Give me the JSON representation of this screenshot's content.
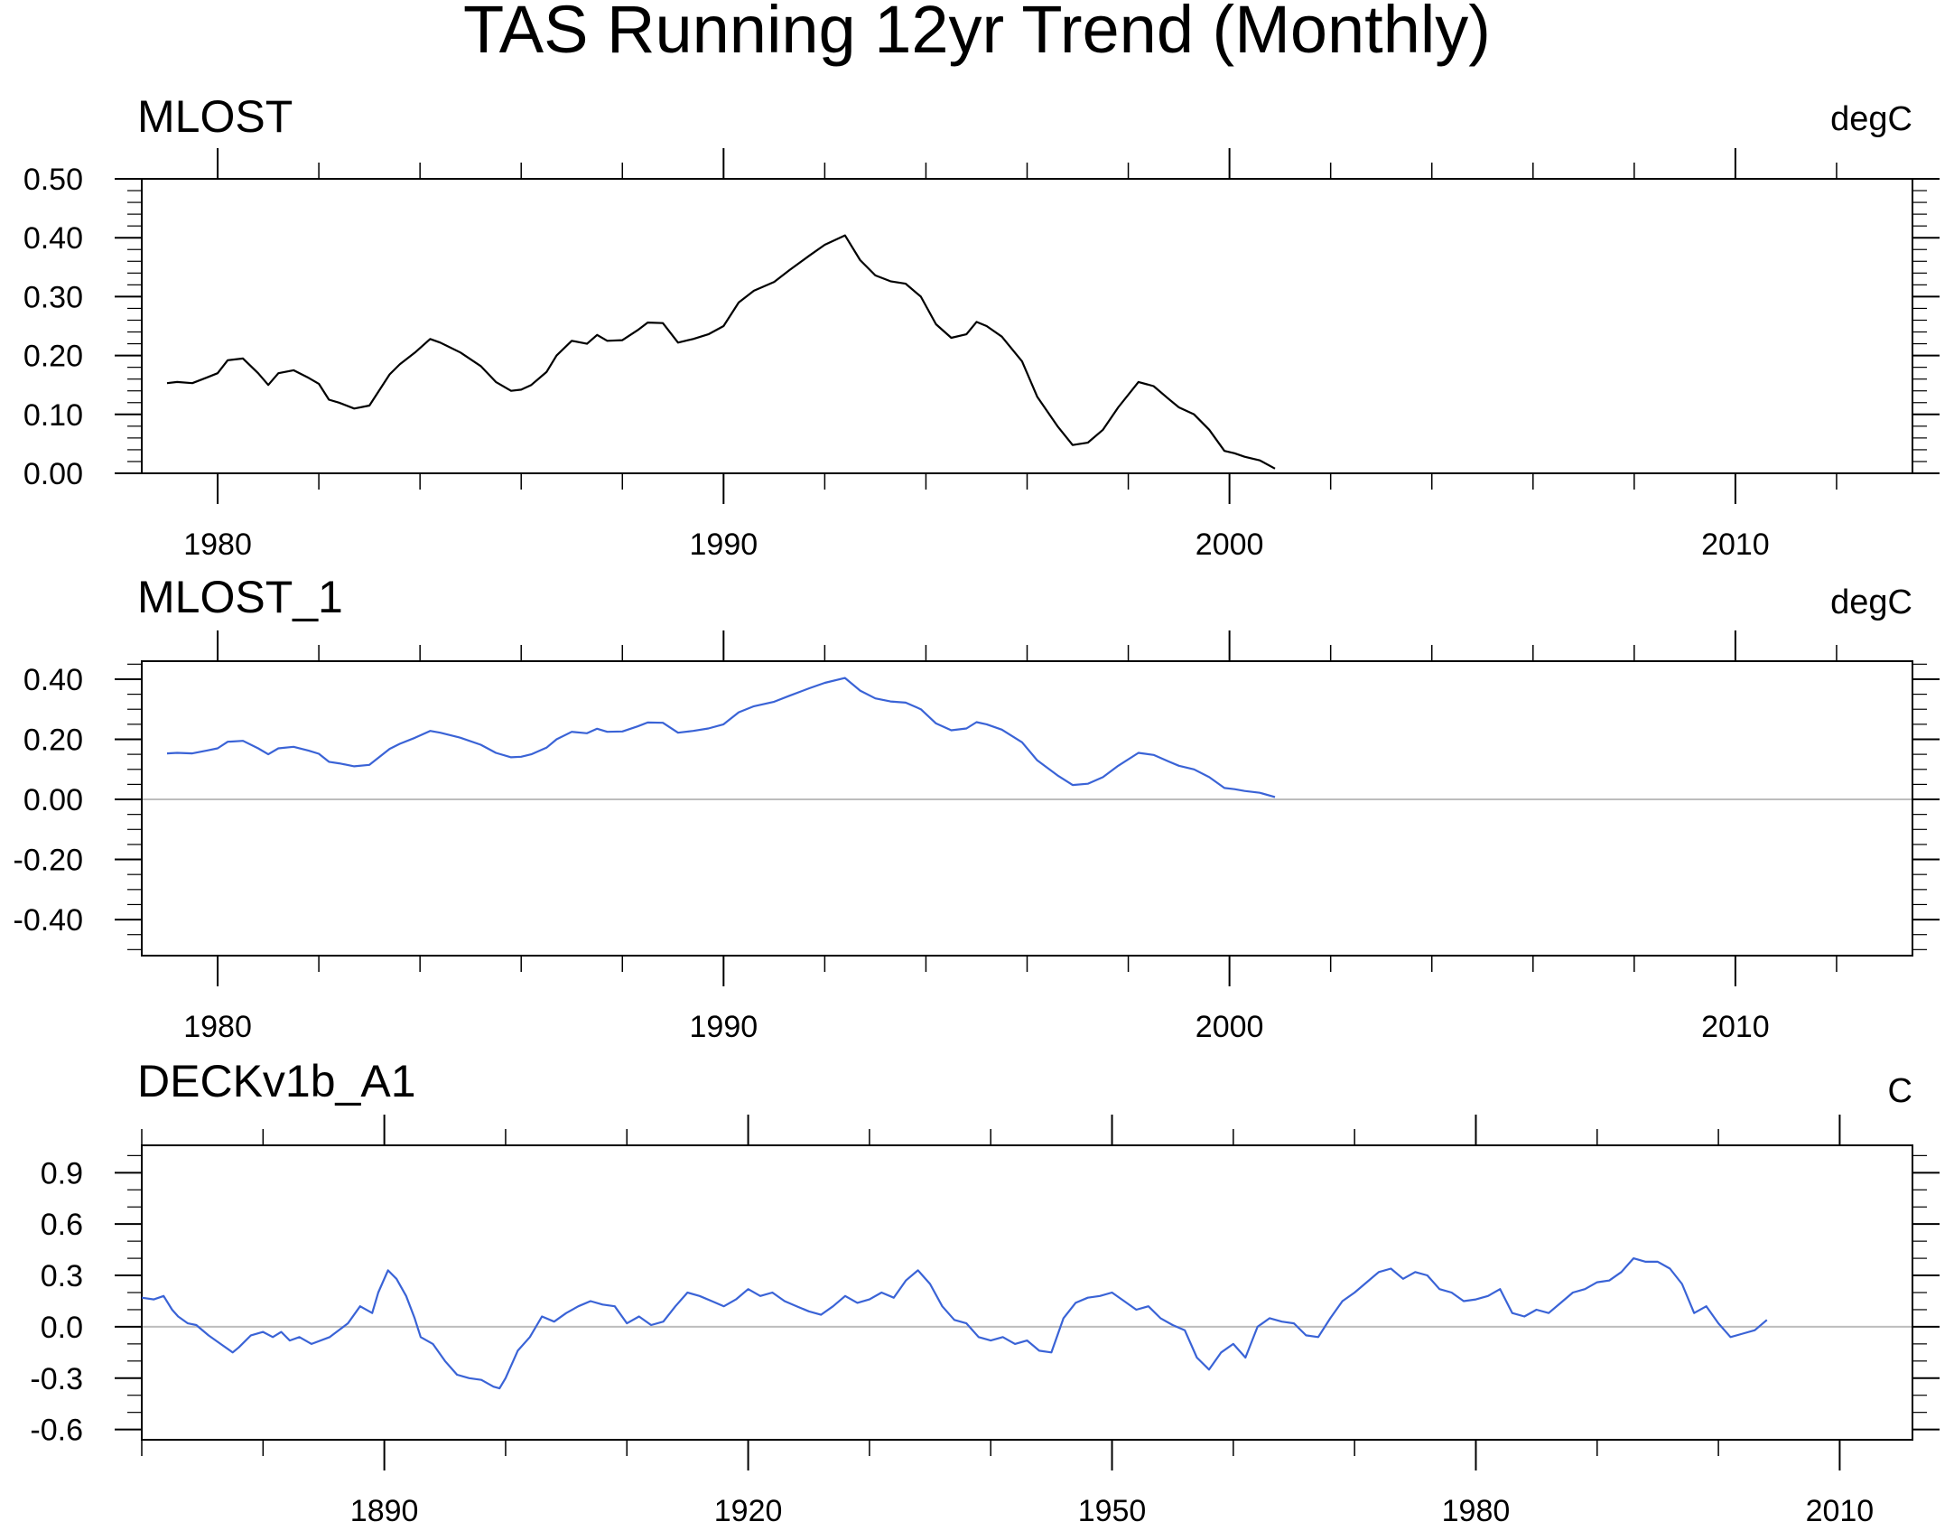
{
  "figure": {
    "title": "TAS Running 12yr Trend (Monthly)"
  },
  "chart_data": [
    {
      "type": "line",
      "title": "MLOST",
      "units": "degC",
      "xlim": [
        1978.5,
        2013.5
      ],
      "ylim": [
        0.0,
        0.5
      ],
      "xticks": [
        1980,
        1990,
        2000,
        2010
      ],
      "xminor": [
        1982,
        1984,
        1986,
        1988,
        1992,
        1994,
        1996,
        1998,
        2002,
        2004,
        2006,
        2008,
        2012
      ],
      "yticks": [
        0.0,
        0.1,
        0.2,
        0.3,
        0.4,
        0.5
      ],
      "ytick_labels": [
        "0.00",
        "0.10",
        "0.20",
        "0.30",
        "0.40",
        "0.50"
      ],
      "ystep_minor": 0.02,
      "zero_line": false,
      "color": "#000000",
      "series": [
        {
          "x": [
            1979.0,
            1979.2,
            1979.5,
            1979.8,
            1980.0,
            1980.2,
            1980.5,
            1980.8,
            1981.0,
            1981.2,
            1981.5,
            1981.8,
            1982.0,
            1982.2,
            1982.4,
            1982.7,
            1983.0,
            1983.4,
            1983.6,
            1983.9,
            1984.2,
            1984.4,
            1984.8,
            1985.2,
            1985.5,
            1985.8,
            1986.0,
            1986.2,
            1986.5,
            1986.7,
            1987.0,
            1987.3,
            1987.5,
            1987.7,
            1988.0,
            1988.3,
            1988.5,
            1988.8,
            1989.1,
            1989.4,
            1989.7,
            1990.0,
            1990.3,
            1990.6,
            1991.0,
            1991.3,
            1991.7,
            1992.0,
            1992.4,
            1992.7,
            1993.0,
            1993.3,
            1993.6,
            1993.9,
            1994.2,
            1994.5,
            1994.8,
            1995.0,
            1995.2,
            1995.5,
            1995.9,
            1996.2,
            1996.6,
            1996.9,
            1997.2,
            1997.5,
            1997.8,
            1998.2,
            1998.5,
            1998.8,
            1999.0,
            1999.3,
            1999.6,
            1999.9,
            2000.1,
            2000.3,
            2000.6,
            2000.9
          ],
          "y": [
            0.153,
            0.155,
            0.153,
            0.163,
            0.17,
            0.192,
            0.195,
            0.17,
            0.15,
            0.17,
            0.175,
            0.162,
            0.152,
            0.125,
            0.12,
            0.11,
            0.115,
            0.168,
            0.185,
            0.205,
            0.228,
            0.222,
            0.205,
            0.182,
            0.155,
            0.14,
            0.142,
            0.15,
            0.172,
            0.2,
            0.225,
            0.22,
            0.235,
            0.225,
            0.226,
            0.243,
            0.256,
            0.255,
            0.222,
            0.228,
            0.236,
            0.25,
            0.29,
            0.31,
            0.325,
            0.345,
            0.37,
            0.388,
            0.404,
            0.362,
            0.336,
            0.326,
            0.322,
            0.3,
            0.253,
            0.23,
            0.236,
            0.257,
            0.25,
            0.232,
            0.19,
            0.13,
            0.08,
            0.048,
            0.052,
            0.074,
            0.112,
            0.155,
            0.148,
            0.126,
            0.112,
            0.1,
            0.074,
            0.038,
            0.034,
            0.028,
            0.022,
            0.008
          ]
        }
      ]
    },
    {
      "type": "line",
      "title": "MLOST_1",
      "units": "degC",
      "xlim": [
        1978.5,
        2013.5
      ],
      "ylim": [
        -0.52,
        0.46
      ],
      "xticks": [
        1980,
        1990,
        2000,
        2010
      ],
      "xminor": [
        1982,
        1984,
        1986,
        1988,
        1992,
        1994,
        1996,
        1998,
        2002,
        2004,
        2006,
        2008,
        2012
      ],
      "yticks": [
        -0.4,
        -0.2,
        0.0,
        0.2,
        0.4
      ],
      "ytick_labels": [
        "-0.40",
        "-0.20",
        "0.00",
        "0.20",
        "0.40"
      ],
      "ystep_minor": 0.05,
      "zero_line": true,
      "color": "#3a63d6",
      "series": [
        {
          "x": [
            1979.0,
            1979.2,
            1979.5,
            1979.8,
            1980.0,
            1980.2,
            1980.5,
            1980.8,
            1981.0,
            1981.2,
            1981.5,
            1981.8,
            1982.0,
            1982.2,
            1982.4,
            1982.7,
            1983.0,
            1983.4,
            1983.6,
            1983.9,
            1984.2,
            1984.4,
            1984.8,
            1985.2,
            1985.5,
            1985.8,
            1986.0,
            1986.2,
            1986.5,
            1986.7,
            1987.0,
            1987.3,
            1987.5,
            1987.7,
            1988.0,
            1988.3,
            1988.5,
            1988.8,
            1989.1,
            1989.4,
            1989.7,
            1990.0,
            1990.3,
            1990.6,
            1991.0,
            1991.3,
            1991.7,
            1992.0,
            1992.4,
            1992.7,
            1993.0,
            1993.3,
            1993.6,
            1993.9,
            1994.2,
            1994.5,
            1994.8,
            1995.0,
            1995.2,
            1995.5,
            1995.9,
            1996.2,
            1996.6,
            1996.9,
            1997.2,
            1997.5,
            1997.8,
            1998.2,
            1998.5,
            1998.8,
            1999.0,
            1999.3,
            1999.6,
            1999.9,
            2000.1,
            2000.3,
            2000.6,
            2000.9
          ],
          "y": [
            0.153,
            0.155,
            0.153,
            0.163,
            0.17,
            0.192,
            0.195,
            0.17,
            0.15,
            0.17,
            0.175,
            0.162,
            0.152,
            0.125,
            0.12,
            0.11,
            0.115,
            0.168,
            0.185,
            0.205,
            0.228,
            0.222,
            0.205,
            0.182,
            0.155,
            0.14,
            0.142,
            0.15,
            0.172,
            0.2,
            0.225,
            0.22,
            0.235,
            0.225,
            0.226,
            0.243,
            0.256,
            0.255,
            0.222,
            0.228,
            0.236,
            0.25,
            0.29,
            0.31,
            0.325,
            0.345,
            0.37,
            0.388,
            0.404,
            0.362,
            0.336,
            0.326,
            0.322,
            0.3,
            0.253,
            0.23,
            0.236,
            0.257,
            0.25,
            0.232,
            0.19,
            0.13,
            0.08,
            0.048,
            0.052,
            0.074,
            0.112,
            0.155,
            0.148,
            0.126,
            0.112,
            0.1,
            0.074,
            0.038,
            0.034,
            0.028,
            0.022,
            0.008
          ]
        }
      ]
    },
    {
      "type": "line",
      "title": "DECKv1b_A1",
      "units": "C",
      "xlim": [
        1870,
        2016
      ],
      "ylim": [
        -0.66,
        1.06
      ],
      "xticks": [
        1890,
        1920,
        1950,
        1980,
        2010
      ],
      "xminor": [
        1870,
        1880,
        1900,
        1910,
        1930,
        1940,
        1960,
        1970,
        1990,
        2000
      ],
      "yticks": [
        -0.6,
        -0.3,
        0.0,
        0.3,
        0.6,
        0.9
      ],
      "ytick_labels": [
        "-0.6",
        "-0.3",
        "0.0",
        "0.3",
        "0.6",
        "0.9"
      ],
      "ystep_minor": 0.1,
      "zero_line": true,
      "color": "#3a63d6",
      "series": [
        {
          "x": [
            1870.0,
            1871.0,
            1871.8,
            1872.5,
            1873.0,
            1873.8,
            1874.5,
            1875.5,
            1876.5,
            1877.5,
            1878.0,
            1879.0,
            1880.0,
            1880.8,
            1881.5,
            1882.2,
            1883.0,
            1884.0,
            1885.5,
            1887.0,
            1888.0,
            1889.0,
            1889.5,
            1890.3,
            1891.0,
            1891.8,
            1892.5,
            1893.0,
            1894.0,
            1895.0,
            1896.0,
            1897.0,
            1898.0,
            1899.0,
            1899.5,
            1900.0,
            1901.0,
            1902.0,
            1903.0,
            1904.0,
            1905.0,
            1906.0,
            1907.0,
            1908.0,
            1909.0,
            1910.0,
            1911.0,
            1912.0,
            1913.0,
            1914.0,
            1915.0,
            1916.0,
            1917.0,
            1918.0,
            1919.0,
            1920.0,
            1921.0,
            1922.0,
            1923.0,
            1924.0,
            1925.0,
            1926.0,
            1927.0,
            1928.0,
            1929.0,
            1930.0,
            1931.0,
            1932.0,
            1933.0,
            1934.0,
            1935.0,
            1936.0,
            1937.0,
            1938.0,
            1939.0,
            1940.0,
            1941.0,
            1942.0,
            1943.0,
            1944.0,
            1945.0,
            1946.0,
            1947.0,
            1948.0,
            1949.0,
            1950.0,
            1951.0,
            1952.0,
            1953.0,
            1954.0,
            1955.0,
            1956.0,
            1957.0,
            1958.0,
            1959.0,
            1960.0,
            1961.0,
            1962.0,
            1963.0,
            1964.0,
            1965.0,
            1966.0,
            1967.0,
            1968.0,
            1969.0,
            1970.0,
            1971.0,
            1972.0,
            1973.0,
            1974.0,
            1975.0,
            1976.0,
            1977.0,
            1978.0,
            1979.0,
            1980.0,
            1981.0,
            1982.0,
            1983.0,
            1984.0,
            1985.0,
            1986.0,
            1987.0,
            1988.0,
            1989.0,
            1990.0,
            1991.0,
            1992.0,
            1993.0,
            1994.0,
            1995.0,
            1996.0,
            1997.0,
            1998.0,
            1999.0,
            2000.0,
            2001.0,
            2002.0,
            2003.0,
            2004.0
          ],
          "y": [
            0.17,
            0.16,
            0.18,
            0.1,
            0.06,
            0.02,
            0.01,
            -0.05,
            -0.1,
            -0.15,
            -0.12,
            -0.05,
            -0.03,
            -0.06,
            -0.03,
            -0.08,
            -0.06,
            -0.1,
            -0.06,
            0.02,
            0.12,
            0.08,
            0.2,
            0.33,
            0.28,
            0.18,
            0.05,
            -0.06,
            -0.1,
            -0.2,
            -0.28,
            -0.3,
            -0.31,
            -0.35,
            -0.36,
            -0.3,
            -0.14,
            -0.06,
            0.06,
            0.03,
            0.08,
            0.12,
            0.15,
            0.13,
            0.12,
            0.02,
            0.06,
            0.01,
            0.03,
            0.12,
            0.2,
            0.18,
            0.15,
            0.12,
            0.16,
            0.22,
            0.18,
            0.2,
            0.15,
            0.12,
            0.09,
            0.07,
            0.12,
            0.18,
            0.14,
            0.16,
            0.2,
            0.17,
            0.27,
            0.33,
            0.25,
            0.12,
            0.04,
            0.02,
            -0.06,
            -0.08,
            -0.06,
            -0.1,
            -0.08,
            -0.14,
            -0.15,
            0.05,
            0.14,
            0.17,
            0.18,
            0.2,
            0.15,
            0.1,
            0.12,
            0.05,
            0.01,
            -0.02,
            -0.18,
            -0.25,
            -0.15,
            -0.1,
            -0.18,
            0.0,
            0.05,
            0.03,
            0.02,
            -0.05,
            -0.06,
            0.05,
            0.15,
            0.2,
            0.26,
            0.32,
            0.34,
            0.28,
            0.32,
            0.3,
            0.22,
            0.2,
            0.15,
            0.16,
            0.18,
            0.22,
            0.08,
            0.06,
            0.1,
            0.08,
            0.14,
            0.2,
            0.22,
            0.26,
            0.27,
            0.32,
            0.4,
            0.38,
            0.38,
            0.34,
            0.25,
            0.08,
            0.12,
            0.02,
            -0.06,
            -0.04,
            -0.02,
            0.04
          ]
        }
      ]
    }
  ]
}
